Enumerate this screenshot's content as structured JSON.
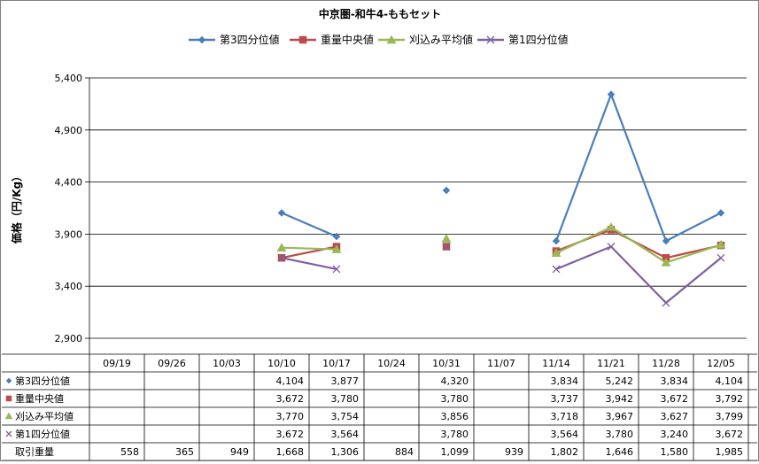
{
  "chart_data": {
    "type": "line",
    "title": "中京圏-和牛4-ももセット",
    "ylabel": "価格（円/Kg）",
    "xlabel": "",
    "ylim": [
      2900,
      5400
    ],
    "yticks": [
      "5,400",
      "4,900",
      "4,400",
      "3,900",
      "3,400",
      "2,900"
    ],
    "ytick_values": [
      5400,
      4900,
      4400,
      3900,
      3400,
      2900
    ],
    "categories": [
      "09/19",
      "09/26",
      "10/03",
      "10/10",
      "10/17",
      "10/24",
      "10/31",
      "11/07",
      "11/14",
      "11/21",
      "11/28",
      "12/05"
    ],
    "legend_position": "top",
    "grid": true,
    "series": [
      {
        "name": "第3四分位値",
        "color": "#4a7ebb",
        "marker": "diamond",
        "values": [
          null,
          null,
          null,
          4104,
          3877,
          null,
          4320,
          null,
          3834,
          5242,
          3834,
          4104
        ],
        "labels": [
          "",
          "",
          "",
          "4,104",
          "3,877",
          "",
          "4,320",
          "",
          "3,834",
          "5,242",
          "3,834",
          "4,104"
        ]
      },
      {
        "name": "重量中央値",
        "color": "#be4b48",
        "marker": "square",
        "values": [
          null,
          null,
          null,
          3672,
          3780,
          null,
          3780,
          null,
          3737,
          3942,
          3672,
          3792
        ],
        "labels": [
          "",
          "",
          "",
          "3,672",
          "3,780",
          "",
          "3,780",
          "",
          "3,737",
          "3,942",
          "3,672",
          "3,792"
        ]
      },
      {
        "name": "刈込み平均値",
        "color": "#98b954",
        "marker": "triangle",
        "values": [
          null,
          null,
          null,
          3770,
          3754,
          null,
          3856,
          null,
          3718,
          3967,
          3627,
          3799
        ],
        "labels": [
          "",
          "",
          "",
          "3,770",
          "3,754",
          "",
          "3,856",
          "",
          "3,718",
          "3,967",
          "3,627",
          "3,799"
        ]
      },
      {
        "name": "第1四分位値",
        "color": "#7d60a0",
        "marker": "x",
        "values": [
          null,
          null,
          null,
          3672,
          3564,
          null,
          3780,
          null,
          3564,
          3780,
          3240,
          3672
        ],
        "labels": [
          "",
          "",
          "",
          "3,672",
          "3,564",
          "",
          "3,780",
          "",
          "3,564",
          "3,780",
          "3,240",
          "3,672"
        ]
      }
    ],
    "extra_row": {
      "name": "取引重量",
      "labels": [
        "558",
        "365",
        "949",
        "1,668",
        "1,306",
        "884",
        "1,099",
        "939",
        "1,802",
        "1,646",
        "1,580",
        "1,985"
      ]
    }
  }
}
